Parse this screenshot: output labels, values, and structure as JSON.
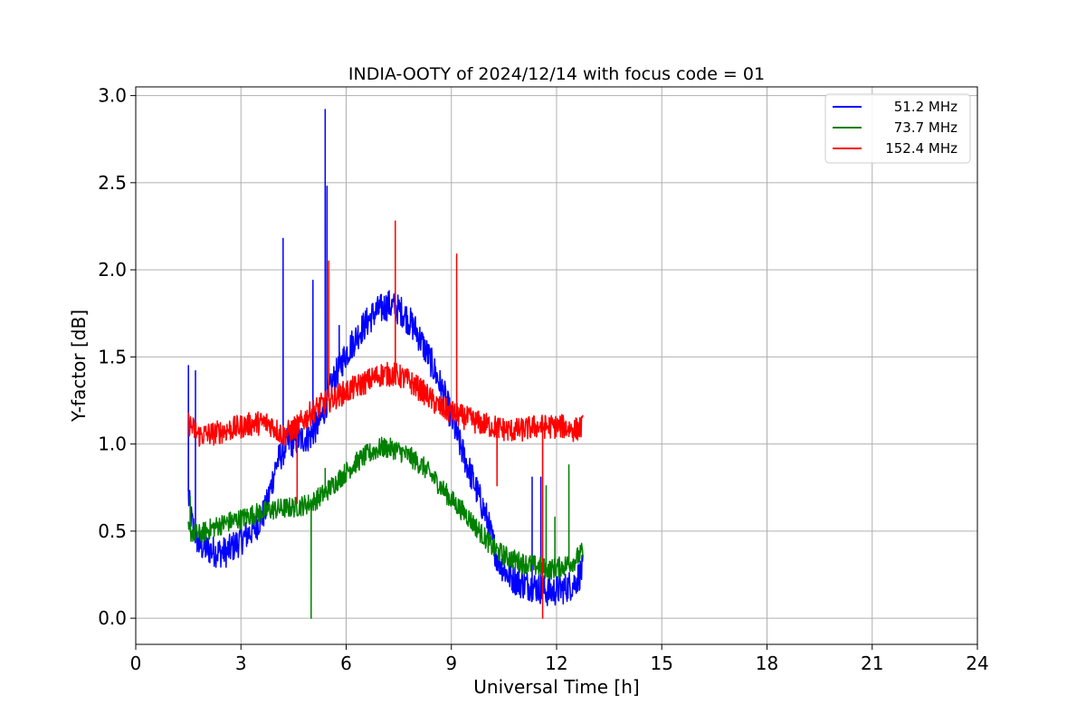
{
  "chart_data": {
    "type": "line",
    "title": "INDIA-OOTY of 2024/12/14 with focus code = 01",
    "xlabel": "Universal Time [h]",
    "ylabel": "Y-factor [dB]",
    "xlim": [
      0,
      24
    ],
    "ylim": [
      -0.15,
      3.05
    ],
    "xticks": [
      0,
      3,
      6,
      9,
      12,
      15,
      18,
      21,
      24
    ],
    "yticks": [
      0.0,
      0.5,
      1.0,
      1.5,
      2.0,
      2.5,
      3.0
    ],
    "grid": true,
    "legend_position": "top-right",
    "series": [
      {
        "name": "51.2 MHz",
        "color": "#0000ff",
        "x": [
          1.5,
          1.6,
          1.8,
          2.0,
          2.3,
          2.6,
          3.0,
          3.4,
          3.7,
          4.0,
          4.3,
          4.6,
          5.0,
          5.3,
          5.6,
          6.0,
          6.4,
          6.8,
          7.2,
          7.6,
          8.0,
          8.4,
          8.8,
          9.2,
          9.6,
          10.0,
          10.3,
          10.6,
          11.0,
          11.4,
          11.8,
          12.2,
          12.5,
          12.75
        ],
        "y": [
          0.7,
          0.55,
          0.42,
          0.4,
          0.38,
          0.38,
          0.45,
          0.52,
          0.62,
          0.88,
          1.0,
          1.02,
          1.05,
          1.15,
          1.35,
          1.52,
          1.65,
          1.75,
          1.8,
          1.76,
          1.65,
          1.48,
          1.28,
          1.02,
          0.8,
          0.58,
          0.35,
          0.25,
          0.2,
          0.18,
          0.15,
          0.17,
          0.2,
          0.28
        ],
        "spikes": [
          [
            1.5,
            1.45
          ],
          [
            1.7,
            1.42
          ],
          [
            4.2,
            2.18
          ],
          [
            5.05,
            1.94
          ],
          [
            5.4,
            2.92
          ],
          [
            5.45,
            2.48
          ],
          [
            5.8,
            1.68
          ],
          [
            11.3,
            0.81
          ],
          [
            11.55,
            0.81
          ]
        ]
      },
      {
        "name": "73.7 MHz",
        "color": "#008000",
        "x": [
          1.5,
          1.8,
          2.2,
          2.6,
          3.0,
          3.4,
          3.8,
          4.2,
          4.6,
          5.0,
          5.4,
          5.8,
          6.2,
          6.6,
          7.0,
          7.4,
          7.8,
          8.2,
          8.6,
          9.0,
          9.4,
          9.8,
          10.2,
          10.6,
          11.0,
          11.4,
          11.8,
          12.2,
          12.5,
          12.75
        ],
        "y": [
          0.5,
          0.48,
          0.52,
          0.55,
          0.57,
          0.6,
          0.62,
          0.63,
          0.64,
          0.66,
          0.72,
          0.8,
          0.88,
          0.94,
          0.98,
          0.97,
          0.93,
          0.87,
          0.78,
          0.68,
          0.6,
          0.5,
          0.4,
          0.35,
          0.32,
          0.3,
          0.28,
          0.3,
          0.33,
          0.38
        ],
        "spikes": [
          [
            1.55,
            0.7
          ],
          [
            5.0,
            0.0
          ],
          [
            5.4,
            0.86
          ],
          [
            11.7,
            0.76
          ],
          [
            11.95,
            0.58
          ],
          [
            12.35,
            0.88
          ]
        ]
      },
      {
        "name": "152.4 MHz",
        "color": "#ff0000",
        "x": [
          1.5,
          1.8,
          2.2,
          2.6,
          3.0,
          3.4,
          3.8,
          4.2,
          4.6,
          5.0,
          5.4,
          5.8,
          6.2,
          6.6,
          7.0,
          7.4,
          7.8,
          8.2,
          8.6,
          9.0,
          9.4,
          9.8,
          10.2,
          10.6,
          11.0,
          11.4,
          11.8,
          12.2,
          12.5,
          12.75
        ],
        "y": [
          1.12,
          1.05,
          1.06,
          1.08,
          1.1,
          1.12,
          1.12,
          1.05,
          1.1,
          1.18,
          1.24,
          1.28,
          1.32,
          1.36,
          1.4,
          1.4,
          1.36,
          1.3,
          1.22,
          1.18,
          1.15,
          1.12,
          1.1,
          1.08,
          1.08,
          1.1,
          1.1,
          1.1,
          1.08,
          1.1
        ],
        "spikes": [
          [
            5.5,
            2.05
          ],
          [
            7.4,
            2.28
          ],
          [
            9.15,
            2.09
          ],
          [
            4.6,
            0.66
          ],
          [
            10.3,
            0.76
          ],
          [
            11.6,
            0.0
          ]
        ]
      }
    ]
  }
}
